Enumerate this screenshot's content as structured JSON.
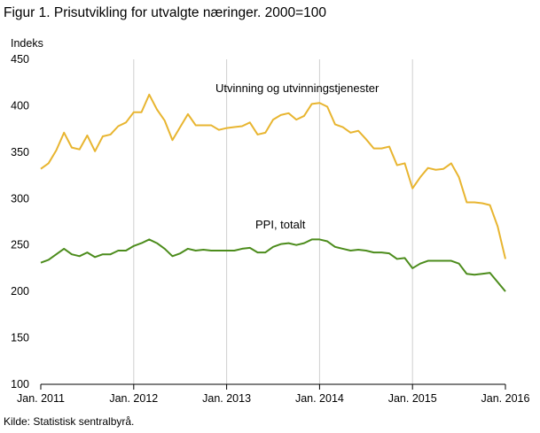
{
  "chart_data": {
    "type": "line",
    "title": "Figur 1. Prisutvikling for utvalgte næringer. 2000=100",
    "ylabel": "Indeks",
    "xlabel": "",
    "ylim": [
      100,
      450
    ],
    "yticks": [
      100,
      150,
      200,
      250,
      300,
      350,
      400,
      450
    ],
    "xlim": [
      "Jan. 2011",
      "Jan. 2016"
    ],
    "xticks": [
      "Jan. 2011",
      "Jan. 2012",
      "Jan. 2013",
      "Jan. 2014",
      "Jan. 2015",
      "Jan. 2016"
    ],
    "grid": "vertical",
    "source": "Kilde: Statistisk sentralbyrå.",
    "series": [
      {
        "name": "Utvinning og utvinningstjenester",
        "color": "#e8b530",
        "values": [
          332,
          338,
          352,
          371,
          355,
          353,
          368,
          351,
          367,
          369,
          378,
          382,
          393,
          393,
          412,
          396,
          384,
          363,
          377,
          391,
          379,
          379,
          379,
          374,
          376,
          377,
          378,
          382,
          369,
          371,
          385,
          390,
          392,
          385,
          389,
          402,
          403,
          399,
          380,
          377,
          371,
          373,
          364,
          354,
          354,
          356,
          336,
          338,
          311,
          323,
          333,
          331,
          332,
          338,
          323,
          296,
          296,
          295,
          293,
          270,
          235
        ]
      },
      {
        "name": "PPI, totalt",
        "color": "#4c8c1c",
        "values": [
          231,
          234,
          240,
          246,
          240,
          238,
          242,
          237,
          240,
          240,
          244,
          244,
          249,
          252,
          256,
          252,
          246,
          238,
          241,
          246,
          244,
          245,
          244,
          244,
          244,
          244,
          246,
          247,
          242,
          242,
          248,
          251,
          252,
          250,
          252,
          256,
          256,
          254,
          248,
          246,
          244,
          245,
          244,
          242,
          242,
          241,
          235,
          236,
          225,
          230,
          233,
          233,
          233,
          233,
          230,
          219,
          218,
          219,
          220,
          210,
          200
        ]
      }
    ]
  }
}
